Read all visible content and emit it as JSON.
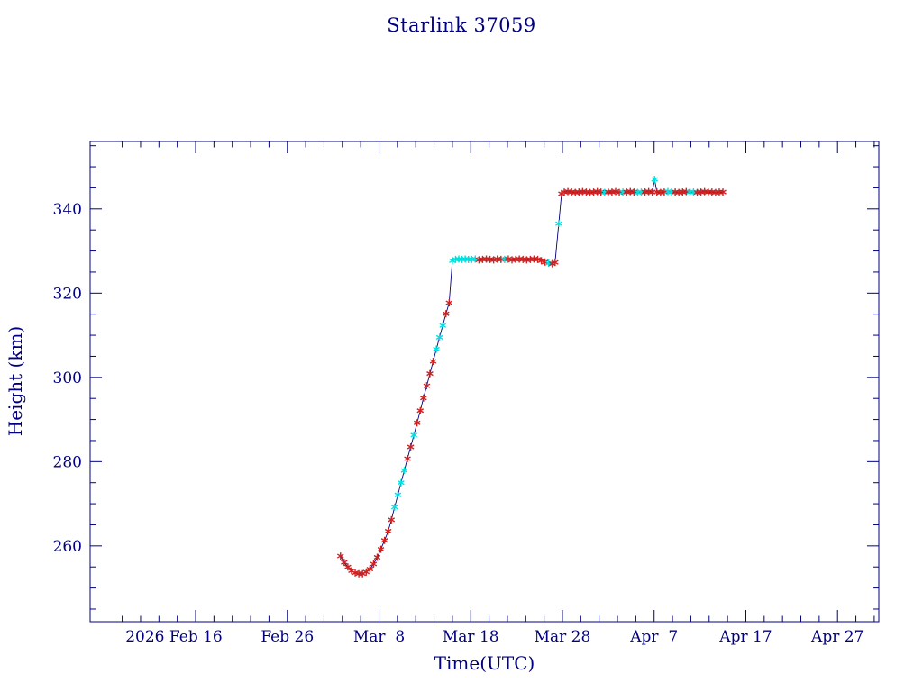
{
  "chart_data": {
    "type": "line",
    "title": "Starlink 37059",
    "xlabel": "Time(UTC)",
    "ylabel": "Height (km)",
    "x_unit": "days since 2026 Feb 1 (UTC)",
    "xlim": [
      3.5,
      89.5
    ],
    "ylim": [
      242,
      356
    ],
    "grid": false,
    "legend": "none",
    "marker": "asterisk",
    "x_ticks": [
      {
        "t": 15,
        "label": "2026 Feb 16",
        "dx": -24
      },
      {
        "t": 25,
        "label": "Feb 26"
      },
      {
        "t": 35,
        "label": "Mar  8"
      },
      {
        "t": 45,
        "label": "Mar 18"
      },
      {
        "t": 55,
        "label": "Mar 28"
      },
      {
        "t": 65,
        "label": "Apr  7"
      },
      {
        "t": 75,
        "label": "Apr 17"
      },
      {
        "t": 85,
        "label": "Apr 27"
      }
    ],
    "x_minor_step": 2,
    "y_ticks": [
      260,
      280,
      300,
      320,
      340
    ],
    "y_minor_step": 5,
    "colors": {
      "axis": "#000080",
      "text": "#000080",
      "line": "#000080",
      "marker_red": "#cc2222",
      "marker_cyan": "#00e0e0",
      "background": "#ffffff"
    },
    "point_columns": [
      "t_days",
      "height_km",
      "color"
    ],
    "points": [
      [
        30.8,
        257.6,
        "r"
      ],
      [
        31.2,
        256.1,
        "r"
      ],
      [
        31.6,
        255.0,
        "r"
      ],
      [
        32.0,
        254.1,
        "r"
      ],
      [
        32.4,
        253.6,
        "r"
      ],
      [
        32.8,
        253.4,
        "r"
      ],
      [
        33.2,
        253.4,
        "r"
      ],
      [
        33.6,
        253.8,
        "r"
      ],
      [
        34.0,
        254.5,
        "r"
      ],
      [
        34.4,
        255.7,
        "r"
      ],
      [
        34.8,
        257.3,
        "r"
      ],
      [
        35.2,
        259.2,
        "r"
      ],
      [
        35.6,
        261.3,
        "r"
      ],
      [
        36.0,
        263.5,
        "r"
      ],
      [
        36.35,
        266.2,
        "r"
      ],
      [
        36.7,
        269.2,
        "c"
      ],
      [
        37.05,
        272.1,
        "c"
      ],
      [
        37.4,
        275.0,
        "c"
      ],
      [
        37.75,
        277.9,
        "c"
      ],
      [
        38.1,
        280.7,
        "r"
      ],
      [
        38.45,
        283.5,
        "r"
      ],
      [
        38.8,
        286.3,
        "c"
      ],
      [
        39.15,
        289.2,
        "r"
      ],
      [
        39.5,
        292.1,
        "r"
      ],
      [
        39.85,
        295.1,
        "r"
      ],
      [
        40.2,
        298.0,
        "r"
      ],
      [
        40.55,
        300.9,
        "r"
      ],
      [
        40.9,
        303.8,
        "r"
      ],
      [
        41.25,
        306.7,
        "c"
      ],
      [
        41.6,
        309.5,
        "c"
      ],
      [
        41.95,
        312.3,
        "c"
      ],
      [
        42.3,
        315.1,
        "r"
      ],
      [
        42.65,
        317.7,
        "r"
      ],
      [
        43.0,
        327.7,
        "c"
      ],
      [
        43.35,
        328.0,
        "c"
      ],
      [
        43.7,
        328.1,
        "c"
      ],
      [
        44.05,
        328.0,
        "c"
      ],
      [
        44.4,
        328.1,
        "c"
      ],
      [
        44.75,
        328.0,
        "c"
      ],
      [
        45.1,
        328.0,
        "c"
      ],
      [
        45.5,
        328.1,
        "c"
      ],
      [
        45.9,
        327.9,
        "r"
      ],
      [
        46.3,
        328.0,
        "r"
      ],
      [
        46.7,
        328.1,
        "r"
      ],
      [
        47.1,
        328.0,
        "r"
      ],
      [
        47.5,
        327.9,
        "r"
      ],
      [
        47.9,
        328.1,
        "r"
      ],
      [
        48.3,
        328.0,
        "r"
      ],
      [
        48.7,
        328.0,
        "c"
      ],
      [
        49.1,
        328.1,
        "r"
      ],
      [
        49.5,
        327.9,
        "r"
      ],
      [
        49.9,
        328.0,
        "r"
      ],
      [
        50.3,
        328.1,
        "r"
      ],
      [
        50.7,
        328.0,
        "r"
      ],
      [
        51.1,
        327.9,
        "r"
      ],
      [
        51.5,
        328.0,
        "r"
      ],
      [
        51.9,
        328.1,
        "r"
      ],
      [
        52.3,
        328.0,
        "r"
      ],
      [
        52.7,
        327.7,
        "r"
      ],
      [
        53.1,
        327.4,
        "r"
      ],
      [
        53.5,
        327.1,
        "c"
      ],
      [
        53.9,
        327.0,
        "r"
      ],
      [
        54.2,
        327.3,
        "r"
      ],
      [
        54.6,
        336.5,
        "c"
      ],
      [
        54.9,
        343.6,
        "r"
      ],
      [
        55.2,
        344.0,
        "r"
      ],
      [
        55.6,
        344.1,
        "r"
      ],
      [
        56.0,
        344.0,
        "r"
      ],
      [
        56.4,
        343.9,
        "r"
      ],
      [
        56.8,
        344.0,
        "r"
      ],
      [
        57.2,
        344.1,
        "r"
      ],
      [
        57.6,
        344.0,
        "r"
      ],
      [
        58.0,
        343.9,
        "r"
      ],
      [
        58.4,
        344.0,
        "r"
      ],
      [
        58.8,
        344.1,
        "r"
      ],
      [
        59.2,
        344.0,
        "r"
      ],
      [
        59.6,
        343.9,
        "c"
      ],
      [
        60.0,
        344.0,
        "r"
      ],
      [
        60.4,
        344.0,
        "r"
      ],
      [
        60.8,
        344.1,
        "r"
      ],
      [
        61.2,
        343.9,
        "r"
      ],
      [
        61.6,
        344.0,
        "c"
      ],
      [
        62.0,
        344.0,
        "r"
      ],
      [
        62.4,
        344.1,
        "r"
      ],
      [
        62.8,
        344.0,
        "r"
      ],
      [
        63.2,
        343.9,
        "c"
      ],
      [
        63.6,
        344.0,
        "c"
      ],
      [
        64.0,
        344.0,
        "r"
      ],
      [
        64.4,
        344.1,
        "r"
      ],
      [
        64.8,
        344.0,
        "r"
      ],
      [
        65.05,
        347.0,
        "c"
      ],
      [
        65.3,
        344.0,
        "r"
      ],
      [
        65.7,
        343.9,
        "r"
      ],
      [
        66.1,
        344.0,
        "r"
      ],
      [
        66.5,
        344.1,
        "c"
      ],
      [
        66.9,
        344.0,
        "c"
      ],
      [
        67.3,
        344.0,
        "r"
      ],
      [
        67.7,
        343.9,
        "r"
      ],
      [
        68.1,
        344.0,
        "r"
      ],
      [
        68.5,
        344.1,
        "r"
      ],
      [
        68.9,
        344.0,
        "c"
      ],
      [
        69.3,
        344.0,
        "c"
      ],
      [
        69.7,
        343.9,
        "r"
      ],
      [
        70.1,
        344.0,
        "r"
      ],
      [
        70.5,
        344.1,
        "r"
      ],
      [
        70.9,
        344.0,
        "r"
      ],
      [
        71.3,
        344.0,
        "r"
      ],
      [
        71.7,
        343.9,
        "r"
      ],
      [
        72.1,
        344.0,
        "r"
      ],
      [
        72.5,
        344.0,
        "r"
      ]
    ]
  }
}
